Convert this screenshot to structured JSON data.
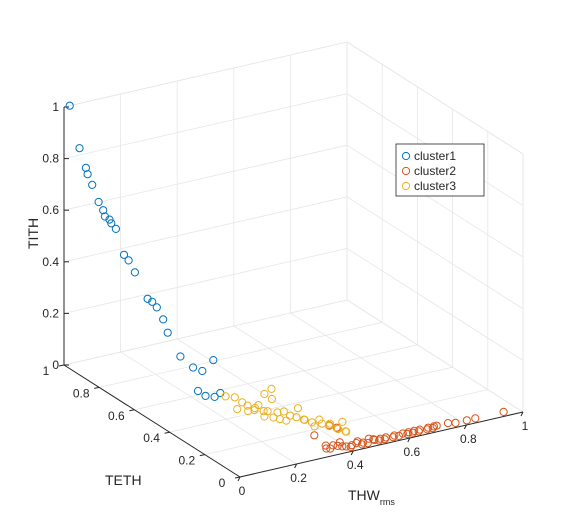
{
  "chart_data": {
    "type": "scatter",
    "subtype": "3d",
    "grid": true,
    "legend_position": "top-right",
    "axes": {
      "x": {
        "label": "THW",
        "label_subscript": "rms",
        "range": [
          0,
          1
        ],
        "ticks": [
          "0",
          "0.2",
          "0.4",
          "0.6",
          "0.8",
          "1"
        ]
      },
      "y": {
        "label": "TETH",
        "range": [
          0,
          1
        ],
        "ticks": [
          "0",
          "0.2",
          "0.4",
          "0.6",
          "0.8",
          "1"
        ]
      },
      "z": {
        "label": "TITH",
        "range": [
          0,
          1
        ],
        "ticks": [
          "0",
          "0.2",
          "0.4",
          "0.6",
          "0.8",
          "1"
        ]
      }
    },
    "series": [
      {
        "name": "cluster1",
        "color": "#0072BD",
        "points": [
          [
            0.02,
            1.0,
            1.0
          ],
          [
            0.03,
            0.96,
            0.85
          ],
          [
            0.04,
            0.94,
            0.78
          ],
          [
            0.04,
            0.93,
            0.76
          ],
          [
            0.05,
            0.92,
            0.72
          ],
          [
            0.06,
            0.9,
            0.66
          ],
          [
            0.07,
            0.89,
            0.63
          ],
          [
            0.07,
            0.88,
            0.61
          ],
          [
            0.08,
            0.87,
            0.6
          ],
          [
            0.08,
            0.86,
            0.59
          ],
          [
            0.09,
            0.85,
            0.57
          ],
          [
            0.1,
            0.82,
            0.48
          ],
          [
            0.11,
            0.81,
            0.46
          ],
          [
            0.12,
            0.79,
            0.42
          ],
          [
            0.14,
            0.75,
            0.33
          ],
          [
            0.15,
            0.74,
            0.32
          ],
          [
            0.16,
            0.73,
            0.3
          ],
          [
            0.17,
            0.71,
            0.26
          ],
          [
            0.18,
            0.7,
            0.21
          ],
          [
            0.2,
            0.66,
            0.13
          ],
          [
            0.22,
            0.62,
            0.1
          ],
          [
            0.24,
            0.6,
            0.09
          ],
          [
            0.26,
            0.57,
            0.14
          ],
          [
            0.2,
            0.56,
            0.04
          ],
          [
            0.22,
            0.55,
            0.02
          ],
          [
            0.24,
            0.53,
            0.02
          ],
          [
            0.26,
            0.53,
            0.03
          ]
        ]
      },
      {
        "name": "cluster2",
        "color": "#D95319",
        "points": [
          [
            0.3,
            0.06,
            0.06
          ],
          [
            0.34,
            0.06,
            0.01
          ],
          [
            0.36,
            0.05,
            0.01
          ],
          [
            0.37,
            0.04,
            0.01
          ],
          [
            0.38,
            0.03,
            0.01
          ],
          [
            0.4,
            0.04,
            0.0
          ],
          [
            0.41,
            0.03,
            0.0
          ],
          [
            0.42,
            0.04,
            0.0
          ],
          [
            0.43,
            0.03,
            0.01
          ],
          [
            0.44,
            0.04,
            0.01
          ],
          [
            0.45,
            0.03,
            0.0
          ],
          [
            0.46,
            0.04,
            0.0
          ],
          [
            0.47,
            0.03,
            0.0
          ],
          [
            0.48,
            0.04,
            0.01
          ],
          [
            0.49,
            0.03,
            0.01
          ],
          [
            0.5,
            0.04,
            0.0
          ],
          [
            0.51,
            0.03,
            0.0
          ],
          [
            0.52,
            0.04,
            0.0
          ],
          [
            0.53,
            0.03,
            0.0
          ],
          [
            0.54,
            0.04,
            0.0
          ],
          [
            0.56,
            0.03,
            0.0
          ],
          [
            0.57,
            0.04,
            0.0
          ],
          [
            0.58,
            0.03,
            0.0
          ],
          [
            0.6,
            0.04,
            0.0
          ],
          [
            0.61,
            0.03,
            0.0
          ],
          [
            0.62,
            0.04,
            0.0
          ],
          [
            0.63,
            0.03,
            0.0
          ],
          [
            0.64,
            0.04,
            0.0
          ],
          [
            0.65,
            0.03,
            0.0
          ],
          [
            0.66,
            0.04,
            0.0
          ],
          [
            0.68,
            0.03,
            0.0
          ],
          [
            0.69,
            0.04,
            0.0
          ],
          [
            0.7,
            0.03,
            0.0
          ],
          [
            0.71,
            0.04,
            0.0
          ],
          [
            0.72,
            0.04,
            0.0
          ],
          [
            0.76,
            0.04,
            0.0
          ],
          [
            0.78,
            0.03,
            0.0
          ],
          [
            0.82,
            0.03,
            0.0
          ],
          [
            0.85,
            0.03,
            0.0
          ],
          [
            0.95,
            0.03,
            0.0
          ],
          [
            0.39,
            0.12,
            0.05
          ],
          [
            0.41,
            0.11,
            0.04
          ],
          [
            0.35,
            0.05,
            0.0
          ],
          [
            0.33,
            0.04,
            0.01
          ],
          [
            0.39,
            0.06,
            0.01
          ]
        ]
      },
      {
        "name": "cluster3",
        "color": "#EDB120",
        "points": [
          [
            0.26,
            0.5,
            0.03
          ],
          [
            0.28,
            0.48,
            0.03
          ],
          [
            0.3,
            0.47,
            0.01
          ],
          [
            0.27,
            0.45,
            0.0
          ],
          [
            0.3,
            0.44,
            0.01
          ],
          [
            0.29,
            0.42,
            0.0
          ],
          [
            0.32,
            0.41,
            0.02
          ],
          [
            0.3,
            0.4,
            0.01
          ],
          [
            0.34,
            0.39,
            0.0
          ],
          [
            0.32,
            0.38,
            0.01
          ],
          [
            0.31,
            0.36,
            0.0
          ],
          [
            0.35,
            0.35,
            0.01
          ],
          [
            0.33,
            0.34,
            0.0
          ],
          [
            0.36,
            0.33,
            0.02
          ],
          [
            0.34,
            0.32,
            0.0
          ],
          [
            0.37,
            0.31,
            0.01
          ],
          [
            0.35,
            0.3,
            0.0
          ],
          [
            0.38,
            0.29,
            0.01
          ],
          [
            0.4,
            0.28,
            0.0
          ],
          [
            0.39,
            0.26,
            0.01
          ],
          [
            0.41,
            0.25,
            0.0
          ],
          [
            0.43,
            0.24,
            0.01
          ],
          [
            0.4,
            0.22,
            0.0
          ],
          [
            0.42,
            0.21,
            0.01
          ],
          [
            0.44,
            0.2,
            0.0
          ],
          [
            0.43,
            0.18,
            0.02
          ],
          [
            0.45,
            0.17,
            0.0
          ],
          [
            0.44,
            0.15,
            0.01
          ],
          [
            0.46,
            0.14,
            0.0
          ],
          [
            0.45,
            0.12,
            0.01
          ],
          [
            0.41,
            0.48,
            0.03
          ],
          [
            0.38,
            0.43,
            0.02
          ],
          [
            0.36,
            0.44,
            0.04
          ],
          [
            0.41,
            0.33,
            0.02
          ],
          [
            0.48,
            0.19,
            0.01
          ],
          [
            0.32,
            0.43,
            0.0
          ]
        ]
      }
    ]
  }
}
